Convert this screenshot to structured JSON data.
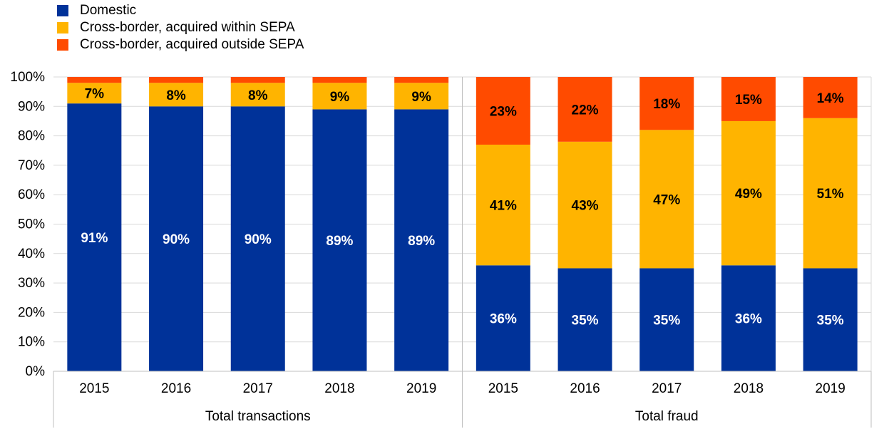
{
  "chart_data": {
    "type": "bar",
    "stacked": true,
    "categories": [
      "2015",
      "2016",
      "2017",
      "2018",
      "2019",
      "2015",
      "2016",
      "2017",
      "2018",
      "2019"
    ],
    "groups": [
      {
        "label": "Total transactions",
        "categories": [
          "2015",
          "2016",
          "2017",
          "2018",
          "2019"
        ]
      },
      {
        "label": "Total fraud",
        "categories": [
          "2015",
          "2016",
          "2017",
          "2018",
          "2019"
        ]
      }
    ],
    "series": [
      {
        "name": "Domestic",
        "color": "#003299",
        "values": [
          91,
          90,
          90,
          89,
          89,
          36,
          35,
          35,
          36,
          35
        ],
        "labels": [
          "91%",
          "90%",
          "90%",
          "89%",
          "89%",
          "36%",
          "35%",
          "35%",
          "36%",
          "35%"
        ]
      },
      {
        "name": "Cross-border, acquired within SEPA",
        "color": "#FFB400",
        "values": [
          7,
          8,
          8,
          9,
          9,
          41,
          43,
          47,
          49,
          51
        ],
        "labels": [
          "7%",
          "8%",
          "8%",
          "9%",
          "9%",
          "41%",
          "43%",
          "47%",
          "49%",
          "51%"
        ]
      },
      {
        "name": "Cross-border, acquired outside SEPA",
        "color": "#FF4B00",
        "values": [
          2,
          2,
          2,
          2,
          2,
          23,
          22,
          18,
          15,
          14
        ],
        "labels": [
          "",
          "",
          "",
          "",
          "",
          "23%",
          "22%",
          "18%",
          "15%",
          "14%"
        ]
      }
    ],
    "ylim": [
      0,
      100
    ],
    "yticks": [
      "0%",
      "10%",
      "20%",
      "30%",
      "40%",
      "50%",
      "60%",
      "70%",
      "80%",
      "90%",
      "100%"
    ],
    "grid": true,
    "legend_position": "top-left",
    "title": "",
    "xlabel": "",
    "ylabel": ""
  }
}
